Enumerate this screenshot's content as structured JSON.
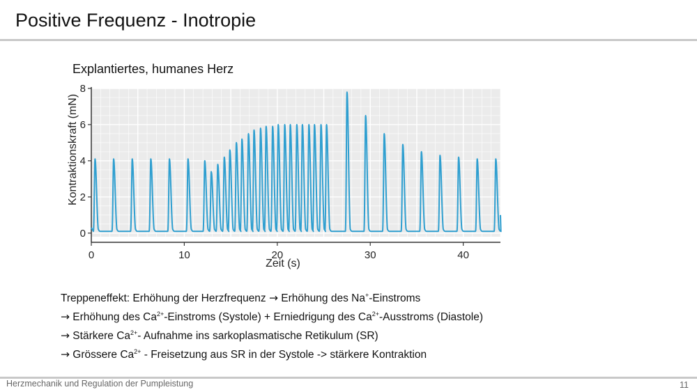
{
  "slide": {
    "title": "Positive Frequenz - Inotropie",
    "subtitle": "Explantiertes, humanes Herz",
    "footer": "Herzmechanik und Regulation der Pumpleistung",
    "page_number": "11"
  },
  "bullets": {
    "line1": {
      "a": "Treppeneffekt:  Erhöhung der Herzfrequenz ",
      "arrow": "→",
      "b": "  Erhöhung des Na",
      "sup": "+",
      "c": "-Einstroms"
    },
    "line2": {
      "arrow": "→",
      "a": " Erhöhung des Ca",
      "sup1": "2+",
      "b": "-Einstroms (Systole) + Erniedrigung des  Ca",
      "sup2": "2+",
      "c": "-Ausstroms (Diastole)"
    },
    "line3": {
      "arrow": "→",
      "a": " Stärkere  Ca",
      "sup": "2+",
      "b": "- Aufnahme ins sarkoplasmatische Retikulum (SR)"
    },
    "line4": {
      "arrow": "→",
      "a": " Grössere  Ca",
      "sup": "2+",
      "b": " - Freisetzung aus SR in der Systole  ->  stärkere Kontraktion"
    }
  },
  "chart_data": {
    "type": "line",
    "xlabel": "Zeit (s)",
    "ylabel": "Kontraktionskraft (mN)",
    "xlim": [
      0,
      44
    ],
    "ylim": [
      -0.2,
      8
    ],
    "xticks": [
      0,
      10,
      20,
      30,
      40
    ],
    "yticks": [
      0,
      2,
      4,
      6,
      8
    ],
    "grid": true,
    "line_color": "#2f9fd0",
    "baseline": 0.1,
    "peaks": [
      [
        0.4,
        4.1
      ],
      [
        2.4,
        4.1
      ],
      [
        4.4,
        4.1
      ],
      [
        6.4,
        4.1
      ],
      [
        8.4,
        4.1
      ],
      [
        10.4,
        4.1
      ],
      [
        12.2,
        4.0
      ],
      [
        12.9,
        3.4
      ],
      [
        13.6,
        3.8
      ],
      [
        14.3,
        4.2
      ],
      [
        14.9,
        4.6
      ],
      [
        15.6,
        5.0
      ],
      [
        16.2,
        5.2
      ],
      [
        16.9,
        5.5
      ],
      [
        17.5,
        5.7
      ],
      [
        18.2,
        5.8
      ],
      [
        18.8,
        5.9
      ],
      [
        19.5,
        5.9
      ],
      [
        20.1,
        6.0
      ],
      [
        20.8,
        6.0
      ],
      [
        21.4,
        6.0
      ],
      [
        22.1,
        6.0
      ],
      [
        22.7,
        6.0
      ],
      [
        23.4,
        6.0
      ],
      [
        24.0,
        6.0
      ],
      [
        24.7,
        6.0
      ],
      [
        25.3,
        6.0
      ],
      [
        27.5,
        7.8
      ],
      [
        29.5,
        6.5
      ],
      [
        31.5,
        5.5
      ],
      [
        33.5,
        4.9
      ],
      [
        35.5,
        4.5
      ],
      [
        37.5,
        4.3
      ],
      [
        39.5,
        4.2
      ],
      [
        41.5,
        4.1
      ],
      [
        43.5,
        4.1
      ]
    ],
    "end": [
      44,
      1.0
    ]
  }
}
